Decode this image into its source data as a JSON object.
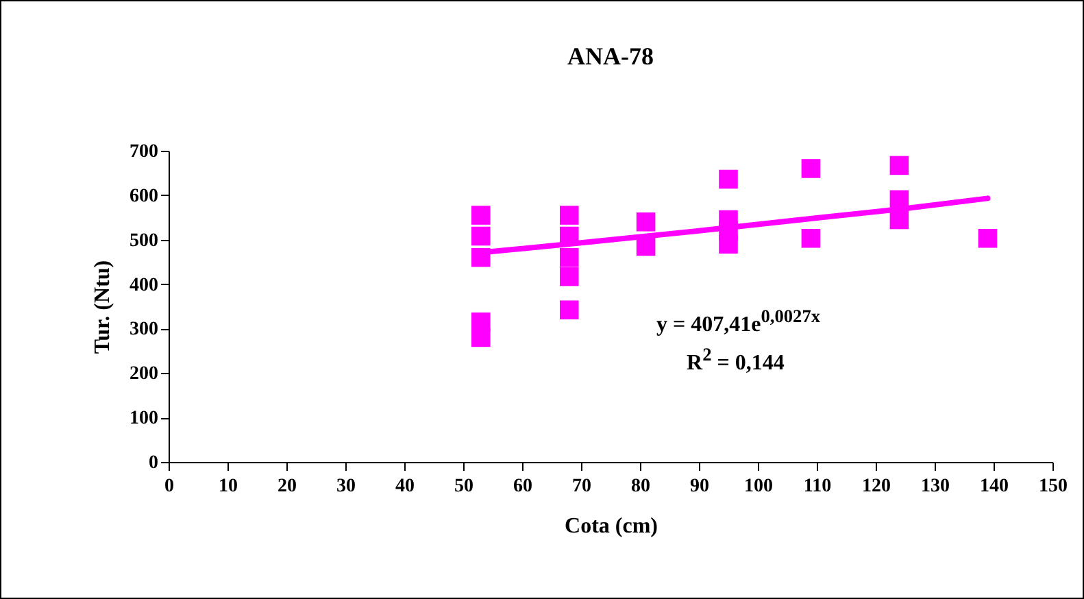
{
  "chart_data": {
    "type": "scatter",
    "title": "ANA-78",
    "xlabel": "Cota (cm)",
    "ylabel": "Tur. (Ntu)",
    "xlim": [
      0,
      150
    ],
    "xticks": [
      0,
      10,
      20,
      30,
      40,
      50,
      60,
      70,
      80,
      90,
      100,
      110,
      120,
      130,
      140,
      150
    ],
    "ylim": [
      0,
      700
    ],
    "yticks": [
      0,
      100,
      200,
      300,
      400,
      500,
      600,
      700
    ],
    "grid": false,
    "marker": "square",
    "annotations": [
      "y = 407,41e$^{0,0027x}$",
      "R$^{2}$ = 0,144"
    ],
    "series": [
      {
        "color": "#ff00ff",
        "x": [
          53,
          53,
          53,
          53,
          53,
          68,
          68,
          68,
          68,
          68,
          81,
          81,
          95,
          95,
          95,
          95,
          109,
          109,
          124,
          124,
          124,
          139
        ],
        "values": [
          460,
          508,
          555,
          280,
          315,
          460,
          508,
          555,
          417,
          342,
          485,
          540,
          490,
          520,
          545,
          636,
          503,
          660,
          545,
          590,
          667,
          503
        ]
      },
      {
        "type": "line",
        "marker": "none",
        "color": "#ff00ff",
        "x": [
          53,
          70,
          90,
          110,
          125,
          139
        ],
        "values": [
          471,
          493,
          520,
          549,
          570,
          593
        ]
      }
    ]
  }
}
